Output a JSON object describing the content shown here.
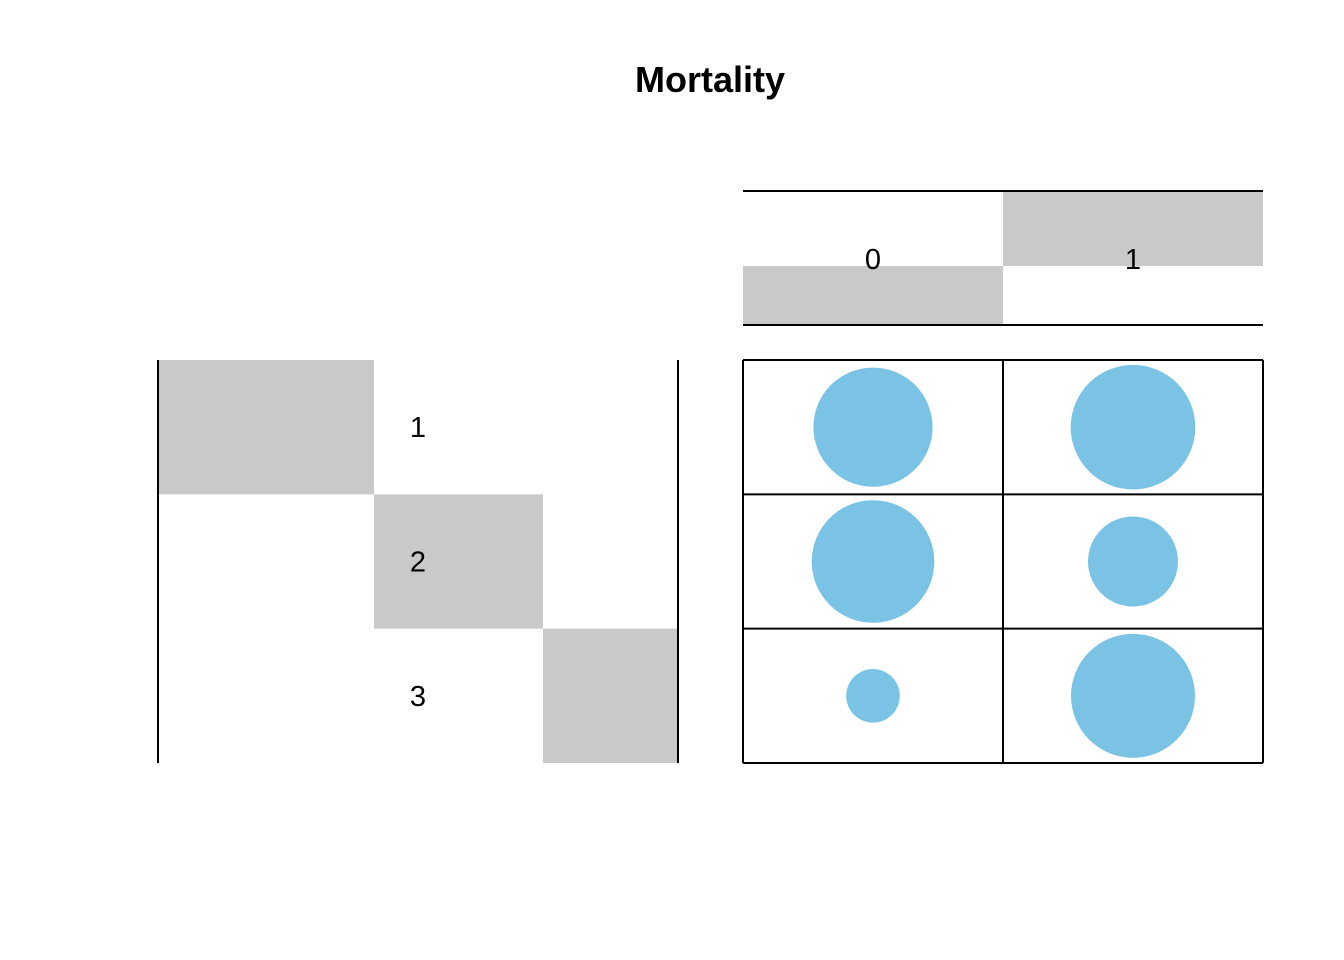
{
  "chart_data": {
    "type": "bubble-matrix",
    "title": "Mortality",
    "columns": [
      "0",
      "1"
    ],
    "rows": [
      "1",
      "2",
      "3"
    ],
    "values": [
      [
        0.84,
        0.92
      ],
      [
        0.89,
        0.48
      ],
      [
        0.17,
        0.91
      ]
    ],
    "value_range": [
      0,
      1
    ],
    "colors": {
      "bubble": "#7AC3E5",
      "band": "#C9C9C9",
      "line": "#000000",
      "text": "#000000",
      "background": "#FFFFFF"
    }
  }
}
